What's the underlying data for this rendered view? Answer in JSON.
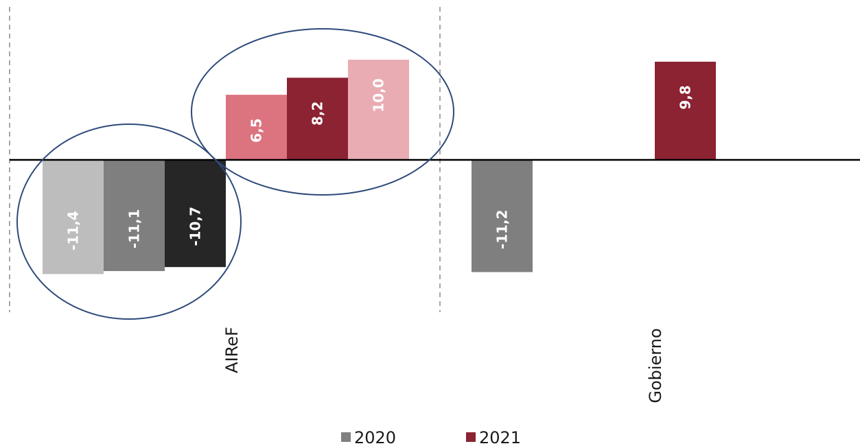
{
  "chart_data": {
    "type": "bar",
    "categories": [
      "AIReF",
      "Gobierno"
    ],
    "bars": [
      {
        "category": "AIReF",
        "series": "2020",
        "value": -11.4,
        "label": "-11,4",
        "color": "#bdbdbd"
      },
      {
        "category": "AIReF",
        "series": "2020",
        "value": -11.1,
        "label": "-11,1",
        "color": "#7f7f7f"
      },
      {
        "category": "AIReF",
        "series": "2020",
        "value": -10.7,
        "label": "-10,7",
        "color": "#262626"
      },
      {
        "category": "AIReF",
        "series": "2021",
        "value": 6.5,
        "label": "6,5",
        "color": "#dc7480"
      },
      {
        "category": "AIReF",
        "series": "2021",
        "value": 8.2,
        "label": "8,2",
        "color": "#8b2332"
      },
      {
        "category": "AIReF",
        "series": "2021",
        "value": 10.0,
        "label": "10,0",
        "color": "#e9acb3"
      },
      {
        "category": "Gobierno",
        "series": "2020",
        "value": -11.2,
        "label": "-11,2",
        "color": "#7f7f7f"
      },
      {
        "category": "Gobierno",
        "series": "2021",
        "value": 9.8,
        "label": "9,8",
        "color": "#8b2332"
      }
    ],
    "legend": {
      "position": "bottom",
      "items": [
        {
          "name": "2020",
          "color": "#808080"
        },
        {
          "name": "2021",
          "color": "#8b2332"
        }
      ]
    },
    "ylim": [
      -15.5,
      16
    ],
    "grid": false,
    "annotations": {
      "circles": [
        "negative AIReF 2020 bars",
        "positive AIReF 2021 bars"
      ],
      "dashed_separators": true
    }
  }
}
